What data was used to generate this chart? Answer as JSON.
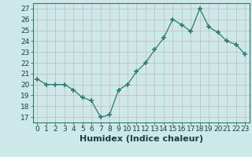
{
  "x": [
    0,
    1,
    2,
    3,
    4,
    5,
    6,
    7,
    8,
    9,
    10,
    11,
    12,
    13,
    14,
    15,
    16,
    17,
    18,
    19,
    20,
    21,
    22,
    23
  ],
  "y": [
    20.5,
    20.0,
    20.0,
    20.0,
    19.5,
    18.8,
    18.5,
    17.0,
    17.2,
    19.5,
    20.0,
    21.2,
    22.0,
    23.2,
    24.3,
    26.0,
    25.5,
    24.9,
    27.0,
    25.3,
    24.8,
    24.0,
    23.7,
    22.8
  ],
  "xlabel": "Humidex (Indice chaleur)",
  "ylim_min": 16.5,
  "ylim_max": 27.5,
  "xlim_min": -0.5,
  "xlim_max": 23.5,
  "yticks": [
    17,
    18,
    19,
    20,
    21,
    22,
    23,
    24,
    25,
    26,
    27
  ],
  "xticks": [
    0,
    1,
    2,
    3,
    4,
    5,
    6,
    7,
    8,
    9,
    10,
    11,
    12,
    13,
    14,
    15,
    16,
    17,
    18,
    19,
    20,
    21,
    22,
    23
  ],
  "line_color": "#2d7b6f",
  "bg_color": "#cce8e8",
  "grid_color": "#b0d4d4",
  "xlabel_fontsize": 8,
  "tick_fontsize": 6.5
}
